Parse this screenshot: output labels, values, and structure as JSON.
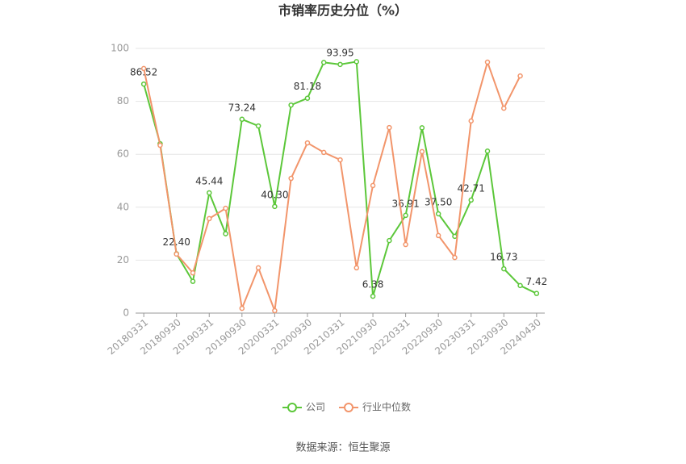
{
  "chart_data": {
    "type": "line",
    "title": "市销率历史分位（%）",
    "categories": [
      "20180331",
      null,
      "20180930",
      null,
      "20190331",
      null,
      "20190930",
      null,
      "20200331",
      null,
      "20200930",
      null,
      "20210331",
      null,
      "20210930",
      null,
      "20220331",
      null,
      "20220930",
      null,
      "20230331",
      null,
      "20230930",
      null,
      "20240430"
    ],
    "series": [
      {
        "name": "公司",
        "color": "#5cc73a",
        "values": [
          86.52,
          64,
          22.4,
          12,
          45.44,
          30,
          73.24,
          70.7,
          40.3,
          78.6,
          81.18,
          94.7,
          93.95,
          95,
          6.38,
          27.4,
          36.91,
          70,
          37.5,
          29,
          42.71,
          61.2,
          16.73,
          10.4,
          7.42
        ],
        "value_labels": [
          "86.52",
          null,
          "22.40",
          null,
          "45.44",
          null,
          "73.24",
          null,
          "40.30",
          null,
          "81.18",
          null,
          "93.95",
          null,
          "6.38",
          null,
          "36.91",
          null,
          "37.50",
          null,
          "42.71",
          null,
          "16.73",
          null,
          "7.42"
        ]
      },
      {
        "name": "行业中位数",
        "color": "#f2956b",
        "values": [
          92.4,
          63.4,
          22.3,
          15.2,
          35.7,
          39.6,
          1.8,
          17.1,
          0.9,
          50.9,
          64.3,
          60.7,
          57.9,
          17.1,
          48.2,
          70.1,
          25.9,
          61,
          29.3,
          21,
          72.6,
          94.8,
          77.4,
          89.6,
          null
        ]
      }
    ],
    "ylim": [
      0,
      100
    ],
    "yticks": [
      0,
      20,
      40,
      60,
      80,
      100
    ],
    "grid": true,
    "legend": "bottom",
    "source": "数据来源：恒生聚源"
  }
}
